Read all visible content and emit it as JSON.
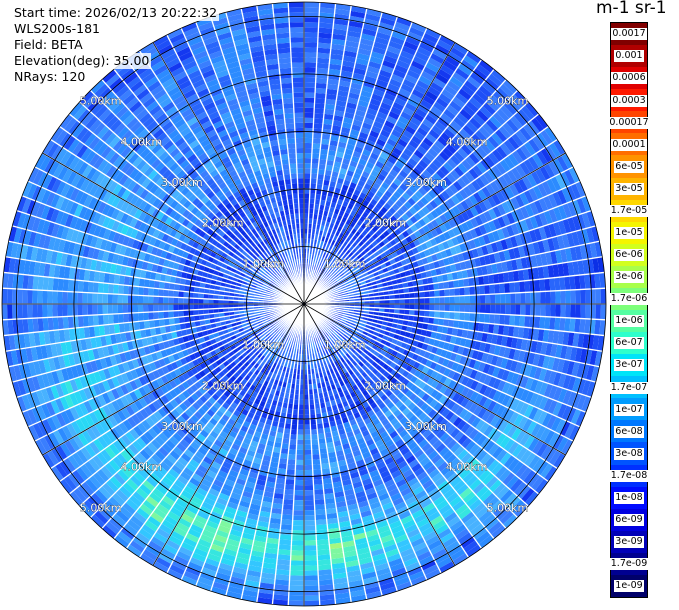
{
  "header": {
    "start_time": "Start time: 2026/02/13 20:22:32",
    "instrument": "WLS200s-181",
    "field": "Field: BETA",
    "elevation": "Elevation(deg): 35.00",
    "nrays": "NRays: 120"
  },
  "colorbar": {
    "units_label": "m-1 sr-1",
    "ticks": [
      "0.0017",
      "0.001",
      "0.0006",
      "0.0003",
      "0.00017",
      "0.0001",
      "6e-05",
      "3e-05",
      "1.7e-05",
      "1e-05",
      "6e-06",
      "3e-06",
      "1.7e-06",
      "1e-06",
      "6e-07",
      "3e-07",
      "1.7e-07",
      "1e-07",
      "6e-08",
      "3e-08",
      "1.7e-08",
      "1e-08",
      "6e-09",
      "3e-09",
      "1.7e-09",
      "1e-09"
    ],
    "colors": [
      "#800000",
      "#b00000",
      "#e00000",
      "#ff1a00",
      "#ff4500",
      "#ff6e00",
      "#ff9300",
      "#ffb400",
      "#ffd800",
      "#f5f500",
      "#d2ff1e",
      "#a8ff4a",
      "#7dff7a",
      "#55ffa2",
      "#2effcc",
      "#00e4f8",
      "#00c0ff",
      "#009cff",
      "#0078ff",
      "#0054ff",
      "#0030ff",
      "#000cff",
      "#0000e0",
      "#0000b8",
      "#000090",
      "#00006a"
    ]
  },
  "chart_data": {
    "type": "heatmap",
    "projection": "polar (PPI scan)",
    "field": "BETA",
    "elevation_deg": 35.0,
    "n_rays": 120,
    "range_rings_km": [
      1.0,
      2.0,
      3.0,
      4.0,
      5.0
    ],
    "range_labels": [
      "1.00km",
      "2.00km",
      "3.00km",
      "4.00km",
      "5.00km"
    ],
    "max_range_km": 5.25,
    "spokes_deg": [
      0,
      30,
      60,
      90,
      120,
      150,
      180,
      210,
      240,
      270,
      300,
      330
    ],
    "color_scale": "logarithmic",
    "value_range": [
      1e-09,
      0.0017
    ],
    "typical_values": {
      "background": 6e-08,
      "near_radar": 3e-08,
      "southern_arc_3.5_to_5km": 1e-06
    }
  }
}
